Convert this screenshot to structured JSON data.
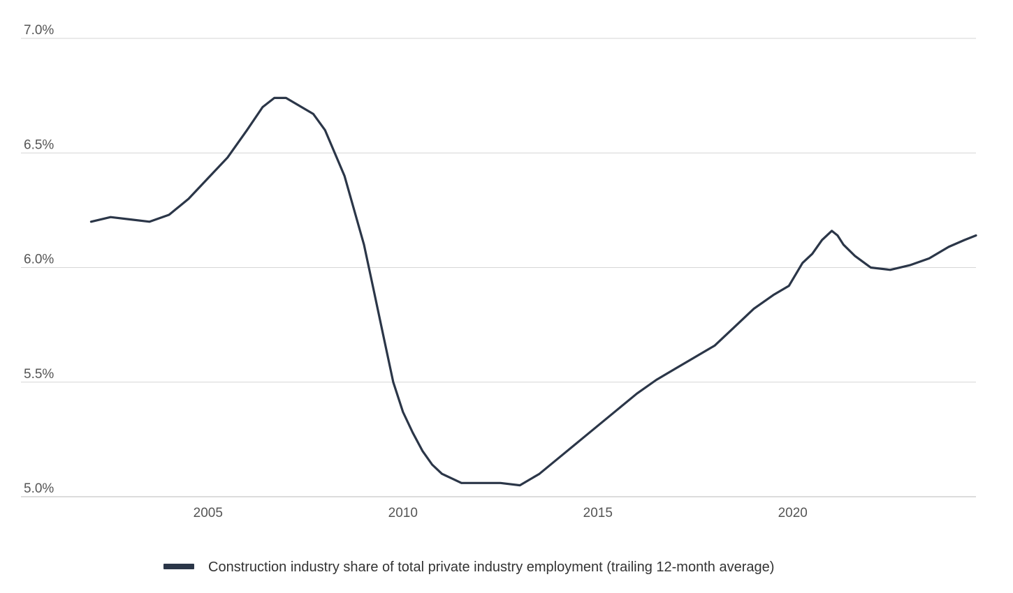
{
  "chart_data": {
    "type": "line",
    "title": "",
    "xlabel": "",
    "ylabel": "",
    "y_tick_labels": [
      "5.0%",
      "5.5%",
      "6.0%",
      "6.5%",
      "7.0%"
    ],
    "y_ticks": [
      5.0,
      5.5,
      6.0,
      6.5,
      7.0
    ],
    "x_tick_labels": [
      "2005",
      "2010",
      "2015",
      "2020"
    ],
    "x_ticks": [
      2005,
      2010,
      2015,
      2020
    ],
    "xlim": [
      2000.2,
      2024.7
    ],
    "ylim": [
      5.0,
      7.0
    ],
    "grid": true,
    "legend_position": "bottom",
    "colors": {
      "series": "#2b3648",
      "grid": "#d6d6d6",
      "axis": "#c8c8c8"
    },
    "series": [
      {
        "name": "Construction industry share of total private industry employment (trailing 12-month average)",
        "x": [
          2002.0,
          2002.5,
          2003.0,
          2003.5,
          2004.0,
          2004.5,
          2005.0,
          2005.5,
          2006.0,
          2006.4,
          2006.7,
          2007.0,
          2007.3,
          2007.7,
          2008.0,
          2008.5,
          2009.0,
          2009.25,
          2009.5,
          2009.75,
          2010.0,
          2010.25,
          2010.5,
          2010.75,
          2011.0,
          2011.25,
          2011.5,
          2011.75,
          2012.0,
          2012.5,
          2013.0,
          2013.5,
          2014.0,
          2014.5,
          2015.0,
          2015.5,
          2016.0,
          2016.5,
          2017.0,
          2017.5,
          2018.0,
          2018.5,
          2019.0,
          2019.5,
          2019.9,
          2020.25,
          2020.5,
          2020.75,
          2021.0,
          2021.15,
          2021.3,
          2021.6,
          2022.0,
          2022.5,
          2023.0,
          2023.5,
          2024.0,
          2024.4,
          2024.7
        ],
        "values": [
          6.2,
          6.22,
          6.21,
          6.2,
          6.23,
          6.3,
          6.39,
          6.48,
          6.6,
          6.7,
          6.74,
          6.74,
          6.71,
          6.67,
          6.6,
          6.4,
          6.1,
          5.9,
          5.7,
          5.5,
          5.37,
          5.28,
          5.2,
          5.14,
          5.1,
          5.08,
          5.06,
          5.06,
          5.06,
          5.06,
          5.05,
          5.1,
          5.17,
          5.24,
          5.31,
          5.38,
          5.45,
          5.51,
          5.56,
          5.61,
          5.66,
          5.74,
          5.82,
          5.88,
          5.92,
          6.02,
          6.06,
          6.12,
          6.16,
          6.14,
          6.1,
          6.05,
          6.0,
          5.99,
          6.01,
          6.04,
          6.09,
          6.12,
          6.14
        ]
      }
    ]
  }
}
